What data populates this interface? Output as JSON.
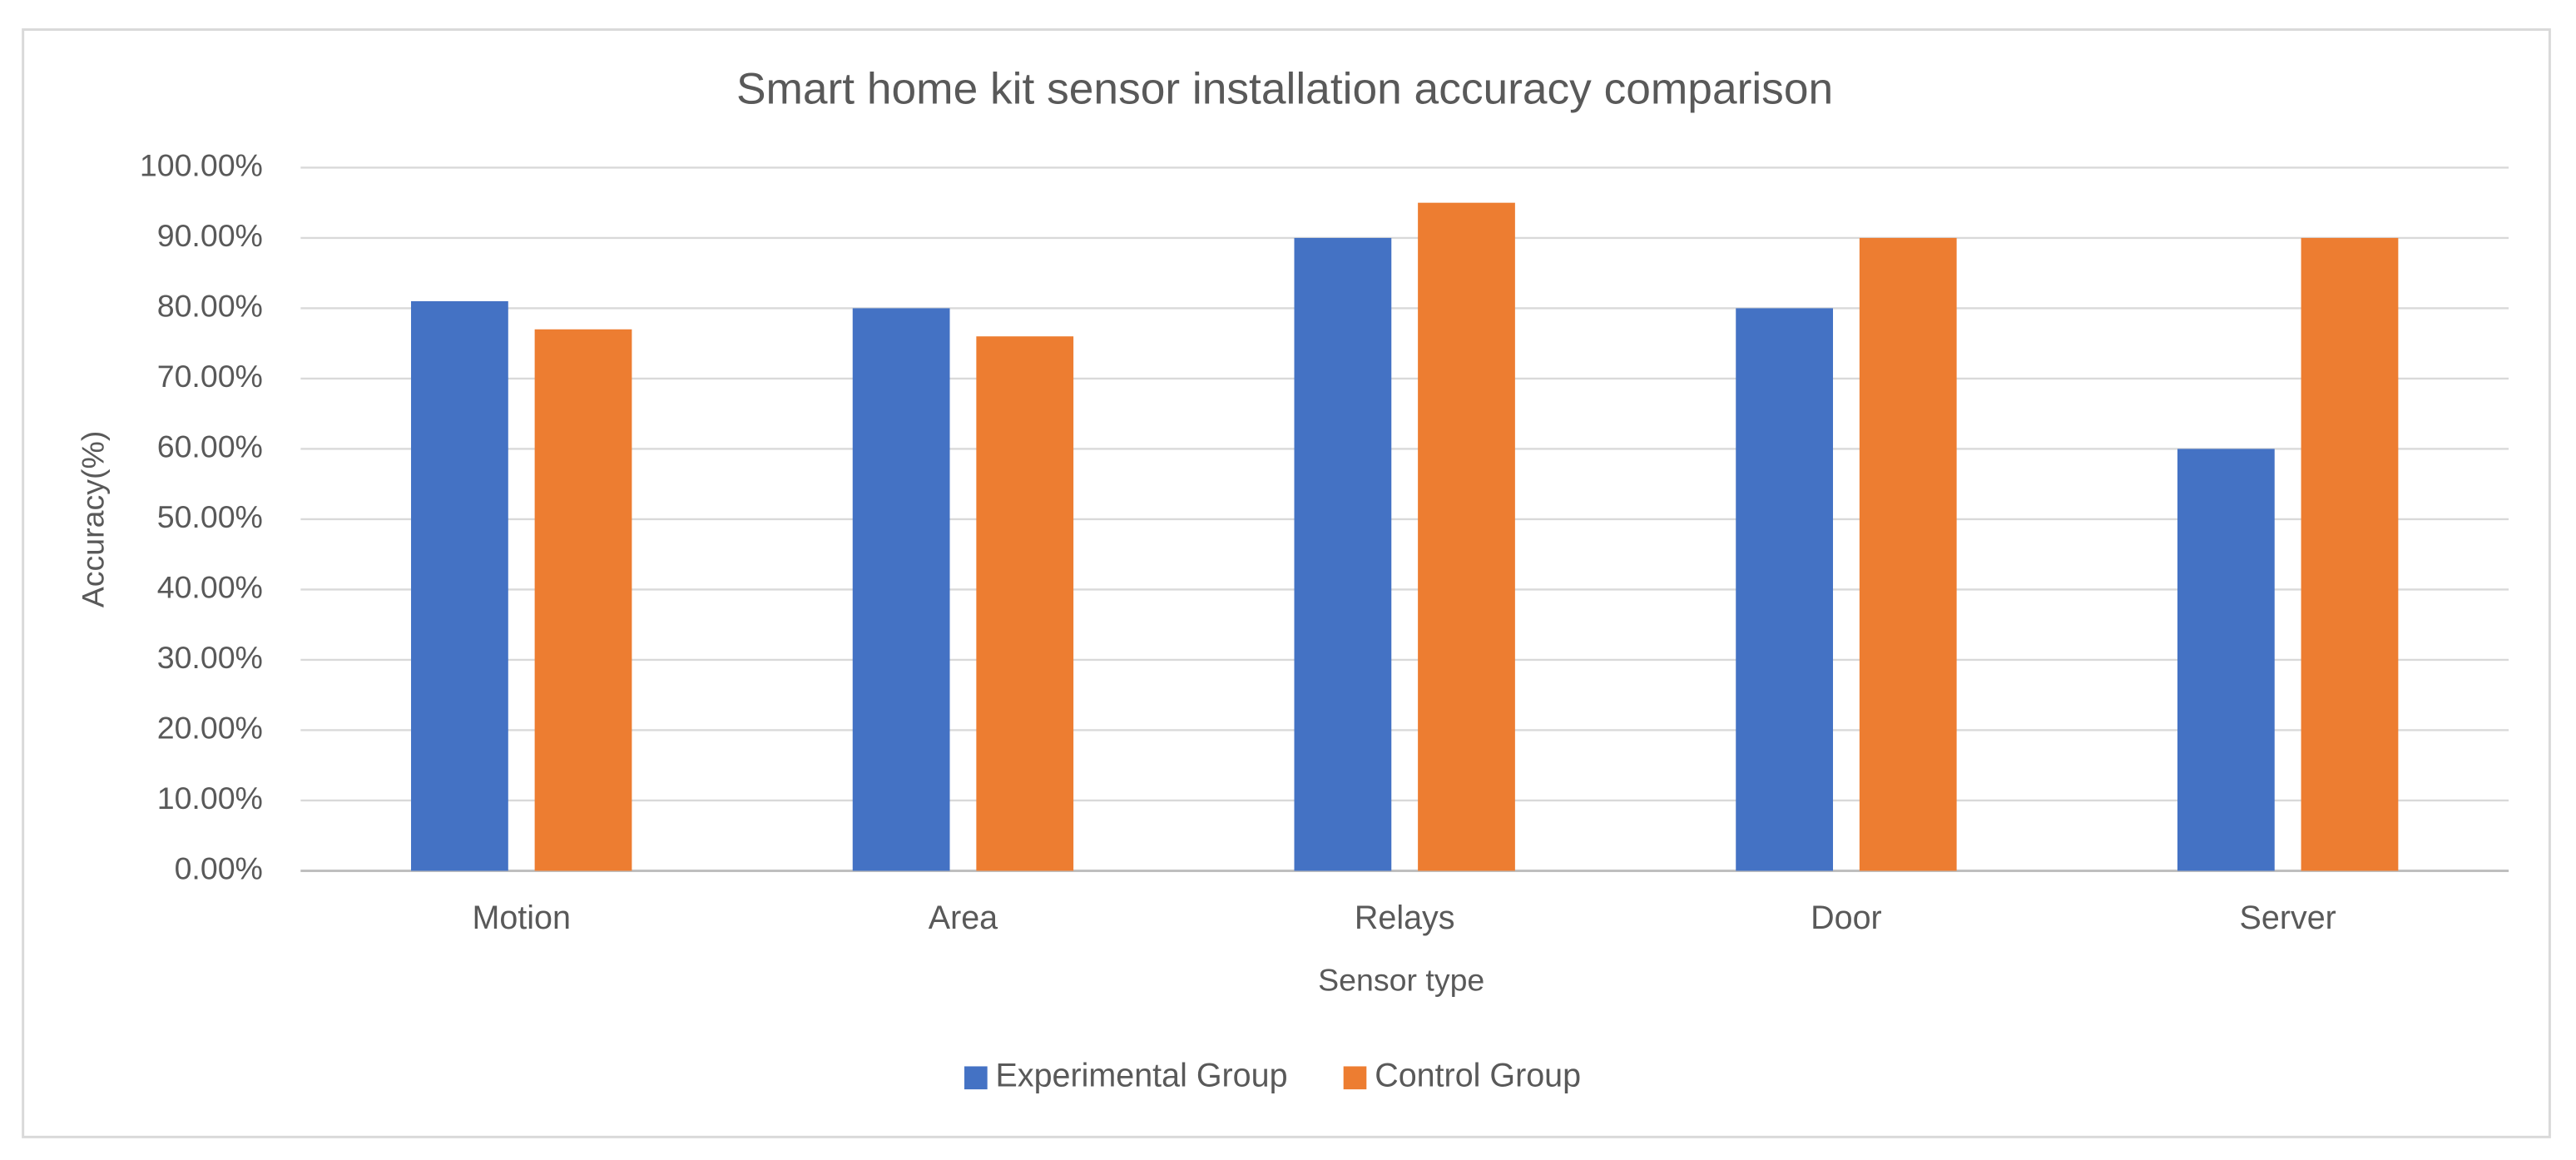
{
  "chart_data": {
    "type": "bar",
    "title": "Smart home kit sensor installation accuracy comparison",
    "x_label": "Sensor type",
    "y_label": "Accuracy(%)",
    "categories": [
      "Motion",
      "Area",
      "Relays",
      "Door",
      "Server"
    ],
    "series": [
      {
        "name": "Experimental Group",
        "color": "#4472c4",
        "values": [
          81,
          80,
          90,
          80,
          60
        ]
      },
      {
        "name": "Control Group",
        "color": "#ed7d31",
        "values": [
          77,
          76,
          95,
          90,
          90
        ]
      }
    ],
    "ylim": [
      0,
      100
    ],
    "yticks": [
      {
        "value": 0,
        "label": "0.00%"
      },
      {
        "value": 10,
        "label": "10.00%"
      },
      {
        "value": 20,
        "label": "20.00%"
      },
      {
        "value": 30,
        "label": "30.00%"
      },
      {
        "value": 40,
        "label": "40.00%"
      },
      {
        "value": 50,
        "label": "50.00%"
      },
      {
        "value": 60,
        "label": "60.00%"
      },
      {
        "value": 70,
        "label": "70.00%"
      },
      {
        "value": 80,
        "label": "80.00%"
      },
      {
        "value": 90,
        "label": "90.00%"
      },
      {
        "value": 100,
        "label": "100.00%"
      }
    ],
    "grid": true,
    "legend": "bottom"
  }
}
